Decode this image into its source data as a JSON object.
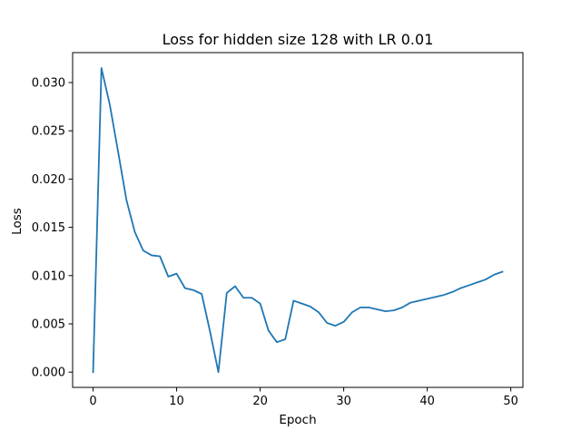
{
  "chart_data": {
    "type": "line",
    "title": "Loss for hidden size 128 with LR 0.01",
    "xlabel": "Epoch",
    "ylabel": "Loss",
    "xlim": [
      -2.45,
      51.45
    ],
    "ylim": [
      -0.00158,
      0.0331
    ],
    "xticks": [
      0,
      10,
      20,
      30,
      40,
      50
    ],
    "xtick_labels": [
      "0",
      "10",
      "20",
      "30",
      "40",
      "50"
    ],
    "yticks": [
      0.0,
      0.005,
      0.01,
      0.015,
      0.02,
      0.025,
      0.03
    ],
    "ytick_labels": [
      "0.000",
      "0.005",
      "0.010",
      "0.015",
      "0.020",
      "0.025",
      "0.030"
    ],
    "grid": false,
    "series": [
      {
        "name": "loss",
        "color": "#1f77b4",
        "x": [
          0,
          1,
          2,
          3,
          4,
          5,
          6,
          7,
          8,
          9,
          10,
          11,
          12,
          13,
          14,
          15,
          16,
          17,
          18,
          19,
          20,
          21,
          22,
          23,
          24,
          25,
          26,
          27,
          28,
          29,
          30,
          31,
          32,
          33,
          34,
          35,
          36,
          37,
          38,
          39,
          40,
          41,
          42,
          43,
          44,
          45,
          46,
          47,
          48,
          49
        ],
        "y": [
          0.0,
          0.0315,
          0.0277,
          0.0228,
          0.0178,
          0.0145,
          0.0126,
          0.0121,
          0.012,
          0.0099,
          0.0102,
          0.0087,
          0.0085,
          0.0081,
          0.0042,
          0.0,
          0.0082,
          0.0089,
          0.0077,
          0.0077,
          0.0071,
          0.0043,
          0.0031,
          0.0034,
          0.0074,
          0.0071,
          0.0068,
          0.0062,
          0.0051,
          0.0048,
          0.0052,
          0.0062,
          0.0067,
          0.0067,
          0.0065,
          0.0063,
          0.0064,
          0.0067,
          0.0072,
          0.0074,
          0.0076,
          0.0078,
          0.008,
          0.0083,
          0.0087,
          0.009,
          0.0093,
          0.0096,
          0.0101,
          0.0104
        ]
      }
    ]
  }
}
